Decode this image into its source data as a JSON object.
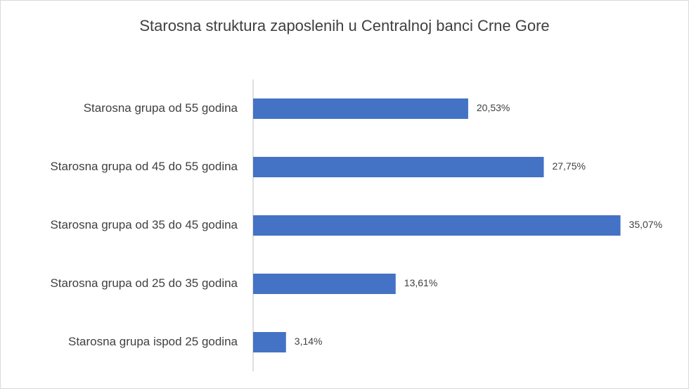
{
  "chart_data": {
    "type": "bar",
    "orientation": "horizontal",
    "title": "Starosna struktura zaposlenih u Centralnoj banci Crne Gore",
    "categories": [
      "Starosna grupa od 55 godina",
      "Starosna grupa od 45 do 55 godina",
      "Starosna grupa od 35 do 45 godina",
      "Starosna grupa od 25 do 35 godina",
      "Starosna grupa ispod 25 godina"
    ],
    "values": [
      20.53,
      27.75,
      35.07,
      13.61,
      3.14
    ],
    "value_labels": [
      "20,53%",
      "27,75%",
      "35,07%",
      "13,61%",
      "3,14%"
    ],
    "color": "#4472c4"
  }
}
